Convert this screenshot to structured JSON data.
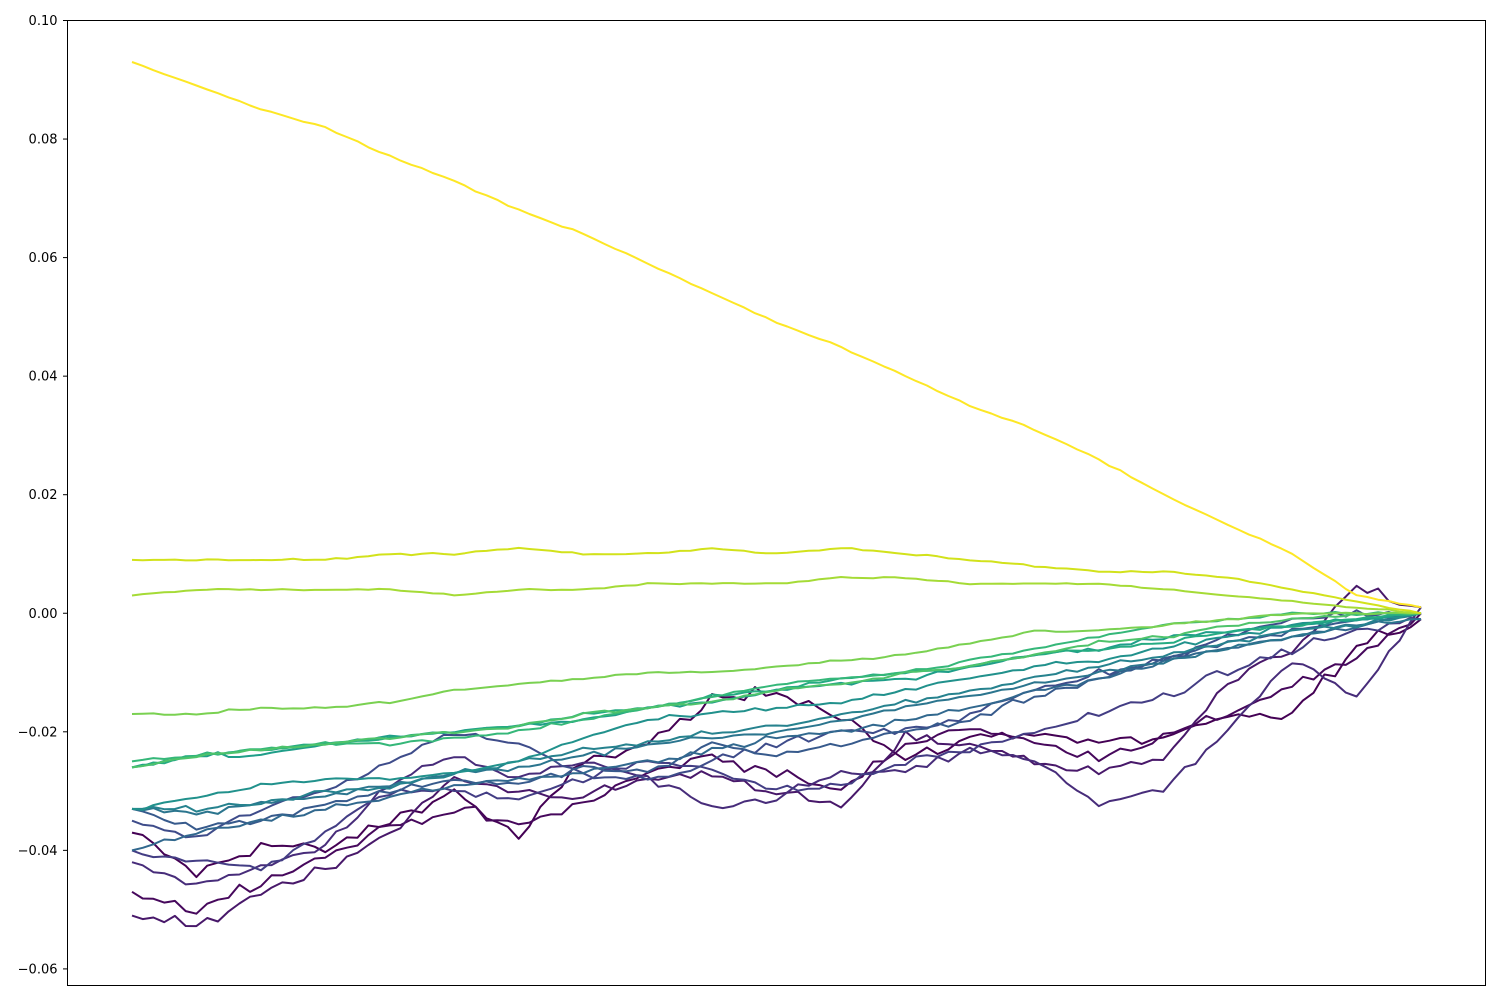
{
  "chart_data": {
    "type": "line",
    "title": "",
    "xlabel": "",
    "ylabel": "",
    "x": [
      0.0,
      0.05,
      0.1,
      0.15,
      0.2,
      0.25,
      0.3,
      0.35,
      0.4,
      0.45,
      0.5,
      0.55,
      0.6,
      0.65,
      0.7,
      0.75,
      0.8,
      0.85,
      0.9,
      0.95,
      1.0
    ],
    "xlim": [
      -0.05,
      1.05
    ],
    "ylim": [
      -0.0628,
      0.1
    ],
    "yticks": [
      -0.06,
      -0.04,
      -0.02,
      0.0,
      0.02,
      0.04,
      0.06,
      0.08,
      0.1
    ],
    "ytick_labels": [
      "−0.06",
      "−0.04",
      "−0.02",
      "0.00",
      "0.02",
      "0.04",
      "0.06",
      "0.08",
      "0.10"
    ],
    "xticks_visible": false,
    "grid": false,
    "legend": "none",
    "colormap": "viridis",
    "series": [
      {
        "color": "#440154",
        "noise": 0.0016,
        "values": [
          -0.037,
          -0.044,
          -0.039,
          -0.04,
          -0.035,
          -0.03,
          -0.038,
          -0.025,
          -0.022,
          -0.015,
          -0.013,
          -0.017,
          -0.025,
          -0.021,
          -0.02,
          -0.022,
          -0.021,
          -0.018,
          -0.017,
          -0.006,
          -0.001
        ]
      },
      {
        "color": "#46085c",
        "noise": 0.0014,
        "values": [
          -0.047,
          -0.05,
          -0.045,
          -0.041,
          -0.036,
          -0.033,
          -0.036,
          -0.032,
          -0.027,
          -0.024,
          -0.027,
          -0.03,
          -0.022,
          -0.019,
          -0.022,
          -0.024,
          -0.021,
          -0.017,
          -0.012,
          -0.008,
          0.0
        ]
      },
      {
        "color": "#48186a",
        "noise": 0.0013,
        "values": [
          -0.051,
          -0.053,
          -0.047,
          -0.043,
          -0.037,
          -0.028,
          -0.03,
          -0.031,
          -0.028,
          -0.027,
          -0.03,
          -0.033,
          -0.021,
          -0.022,
          -0.025,
          -0.027,
          -0.024,
          -0.012,
          -0.006,
          0.004,
          0.001
        ]
      },
      {
        "color": "#472c7a",
        "noise": 0.0011,
        "values": [
          -0.042,
          -0.046,
          -0.043,
          -0.039,
          -0.029,
          -0.024,
          -0.028,
          -0.025,
          -0.028,
          -0.033,
          -0.031,
          -0.027,
          -0.027,
          -0.023,
          -0.025,
          -0.032,
          -0.03,
          -0.02,
          -0.008,
          -0.014,
          0.001
        ]
      },
      {
        "color": "#433d84",
        "noise": 0.001,
        "values": [
          -0.04,
          -0.042,
          -0.043,
          -0.037,
          -0.03,
          -0.03,
          -0.031,
          -0.028,
          -0.025,
          -0.026,
          -0.03,
          -0.029,
          -0.025,
          -0.023,
          -0.02,
          -0.017,
          -0.014,
          -0.01,
          -0.006,
          -0.003,
          -0.001
        ]
      },
      {
        "color": "#3e4c8a",
        "noise": 0.0009,
        "values": [
          -0.035,
          -0.038,
          -0.033,
          -0.03,
          -0.025,
          -0.02,
          -0.022,
          -0.027,
          -0.028,
          -0.025,
          -0.022,
          -0.02,
          -0.02,
          -0.017,
          -0.013,
          -0.01,
          -0.008,
          -0.004,
          -0.001,
          0.0,
          0.0
        ]
      },
      {
        "color": "#375a8c",
        "noise": 0.0008,
        "values": [
          -0.033,
          -0.036,
          -0.035,
          -0.032,
          -0.03,
          -0.028,
          -0.029,
          -0.026,
          -0.027,
          -0.022,
          -0.024,
          -0.022,
          -0.02,
          -0.018,
          -0.014,
          -0.011,
          -0.008,
          -0.005,
          -0.003,
          -0.001,
          0.0
        ]
      },
      {
        "color": "#31688e",
        "noise": 0.0007,
        "values": [
          -0.04,
          -0.037,
          -0.035,
          -0.033,
          -0.031,
          -0.029,
          -0.028,
          -0.027,
          -0.025,
          -0.023,
          -0.021,
          -0.02,
          -0.018,
          -0.016,
          -0.013,
          -0.011,
          -0.008,
          -0.006,
          -0.004,
          -0.002,
          0.0
        ]
      },
      {
        "color": "#2b758e",
        "noise": 0.0006,
        "values": [
          -0.033,
          -0.034,
          -0.032,
          -0.031,
          -0.029,
          -0.027,
          -0.026,
          -0.024,
          -0.022,
          -0.021,
          -0.02,
          -0.018,
          -0.016,
          -0.014,
          -0.012,
          -0.01,
          -0.008,
          -0.006,
          -0.004,
          -0.002,
          -0.001
        ]
      },
      {
        "color": "#26828e",
        "noise": 0.0006,
        "values": [
          -0.033,
          -0.033,
          -0.032,
          -0.03,
          -0.029,
          -0.027,
          -0.025,
          -0.023,
          -0.022,
          -0.02,
          -0.019,
          -0.017,
          -0.015,
          -0.013,
          -0.011,
          -0.009,
          -0.007,
          -0.005,
          -0.003,
          -0.002,
          0.0
        ]
      },
      {
        "color": "#21918c",
        "noise": 0.0005,
        "values": [
          -0.033,
          -0.031,
          -0.029,
          -0.028,
          -0.028,
          -0.027,
          -0.025,
          -0.021,
          -0.018,
          -0.017,
          -0.016,
          -0.015,
          -0.013,
          -0.011,
          -0.009,
          -0.008,
          -0.006,
          -0.004,
          -0.002,
          -0.001,
          0.0
        ]
      },
      {
        "color": "#1f9e89",
        "noise": 0.0005,
        "values": [
          -0.026,
          -0.024,
          -0.024,
          -0.022,
          -0.021,
          -0.02,
          -0.019,
          -0.018,
          -0.016,
          -0.015,
          -0.013,
          -0.012,
          -0.011,
          -0.009,
          -0.007,
          -0.006,
          -0.004,
          -0.003,
          -0.002,
          -0.001,
          0.0
        ]
      },
      {
        "color": "#25ab82",
        "noise": 0.0004,
        "values": [
          -0.026,
          -0.024,
          -0.023,
          -0.022,
          -0.021,
          -0.02,
          -0.019,
          -0.017,
          -0.016,
          -0.014,
          -0.013,
          -0.011,
          -0.01,
          -0.009,
          -0.007,
          -0.006,
          -0.005,
          -0.003,
          -0.002,
          -0.001,
          0.0
        ]
      },
      {
        "color": "#35b779",
        "noise": 0.0004,
        "values": [
          -0.025,
          -0.024,
          -0.023,
          -0.022,
          -0.022,
          -0.021,
          -0.02,
          -0.018,
          -0.016,
          -0.014,
          -0.012,
          -0.011,
          -0.01,
          -0.008,
          -0.006,
          -0.004,
          -0.002,
          -0.001,
          0.0,
          0.0,
          0.0
        ]
      },
      {
        "color": "#4ec36b",
        "noise": 0.0004,
        "values": [
          -0.026,
          -0.024,
          -0.023,
          -0.022,
          -0.021,
          -0.02,
          -0.019,
          -0.017,
          -0.016,
          -0.015,
          -0.013,
          -0.012,
          -0.01,
          -0.009,
          -0.007,
          -0.005,
          -0.004,
          -0.002,
          -0.001,
          0.0,
          0.0
        ]
      },
      {
        "color": "#7ad151",
        "noise": 0.0003,
        "values": [
          -0.017,
          -0.017,
          -0.016,
          -0.016,
          -0.015,
          -0.013,
          -0.012,
          -0.011,
          -0.01,
          -0.01,
          -0.009,
          -0.008,
          -0.007,
          -0.005,
          -0.003,
          -0.003,
          -0.002,
          -0.001,
          0.0,
          0.0,
          0.0
        ]
      },
      {
        "color": "#a5db36",
        "noise": 0.0002,
        "values": [
          0.003,
          0.004,
          0.004,
          0.004,
          0.004,
          0.003,
          0.004,
          0.004,
          0.005,
          0.005,
          0.005,
          0.006,
          0.006,
          0.005,
          0.005,
          0.005,
          0.004,
          0.003,
          0.002,
          0.001,
          0.0
        ]
      },
      {
        "color": "#d2e21b",
        "noise": 0.0002,
        "values": [
          0.009,
          0.009,
          0.009,
          0.009,
          0.01,
          0.01,
          0.011,
          0.01,
          0.01,
          0.011,
          0.01,
          0.011,
          0.01,
          0.009,
          0.008,
          0.007,
          0.007,
          0.006,
          0.004,
          0.002,
          0.0
        ]
      },
      {
        "color": "#fde725",
        "noise": 0.0002,
        "values": [
          0.093,
          0.089,
          0.085,
          0.082,
          0.077,
          0.073,
          0.068,
          0.064,
          0.059,
          0.054,
          0.049,
          0.045,
          0.04,
          0.035,
          0.031,
          0.026,
          0.02,
          0.015,
          0.01,
          0.003,
          0.001
        ]
      }
    ]
  }
}
